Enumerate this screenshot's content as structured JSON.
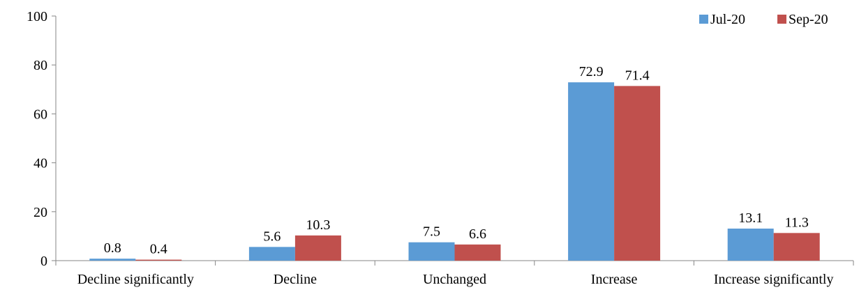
{
  "chart_data": {
    "type": "bar",
    "title": "",
    "xlabel": "",
    "ylabel": "",
    "categories": [
      "Decline significantly",
      "Decline",
      "Unchanged",
      "Increase",
      "Increase significantly"
    ],
    "series": [
      {
        "name": "Jul-20",
        "color": "#5B9BD5",
        "values": [
          0.8,
          5.6,
          7.5,
          72.9,
          13.1
        ]
      },
      {
        "name": "Sep-20",
        "color": "#C0504D",
        "values": [
          0.4,
          10.3,
          6.6,
          71.4,
          11.3
        ]
      }
    ],
    "ylim": [
      0,
      100
    ],
    "yticks": [
      0,
      20,
      40,
      60,
      80,
      100
    ],
    "grid": false,
    "legend_position": "top-right",
    "data_labels": true
  }
}
